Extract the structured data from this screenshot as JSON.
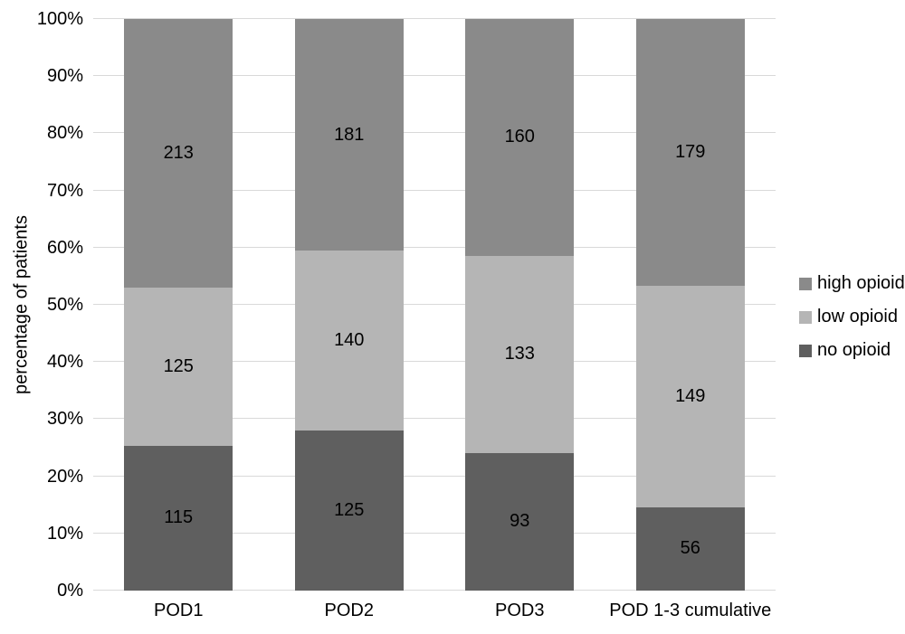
{
  "chart_data": {
    "type": "bar",
    "variant": "100-percent-stacked-column",
    "title": "",
    "xlabel": "",
    "ylabel": "percentage of patients",
    "categories": [
      "POD1",
      "POD2",
      "POD3",
      "POD 1-3 cumulative"
    ],
    "series": [
      {
        "name": "no opioid",
        "color": "#5f5f5f",
        "values": [
          115,
          125,
          93,
          56
        ]
      },
      {
        "name": "low opioid",
        "color": "#b5b5b5",
        "values": [
          125,
          140,
          133,
          149
        ]
      },
      {
        "name": "high opioid",
        "color": "#8a8a8a",
        "values": [
          213,
          181,
          160,
          179
        ]
      }
    ],
    "stack_order": "bottom-to-top as listed",
    "yticks": [
      {
        "label": "0%",
        "value": 0
      },
      {
        "label": "10%",
        "value": 10
      },
      {
        "label": "20%",
        "value": 20
      },
      {
        "label": "30%",
        "value": 30
      },
      {
        "label": "40%",
        "value": 40
      },
      {
        "label": "50%",
        "value": 50
      },
      {
        "label": "60%",
        "value": 60
      },
      {
        "label": "70%",
        "value": 70
      },
      {
        "label": "80%",
        "value": 80
      },
      {
        "label": "90%",
        "value": 90
      },
      {
        "label": "100%",
        "value": 100
      }
    ],
    "ylim": [
      0,
      100
    ],
    "grid": true,
    "gridline_color": "#d9d9d9",
    "data_label_color": "#000000",
    "background": "#ffffff",
    "legend": {
      "position": "right",
      "entries": [
        "high opioid",
        "low opioid",
        "no opioid"
      ]
    }
  }
}
